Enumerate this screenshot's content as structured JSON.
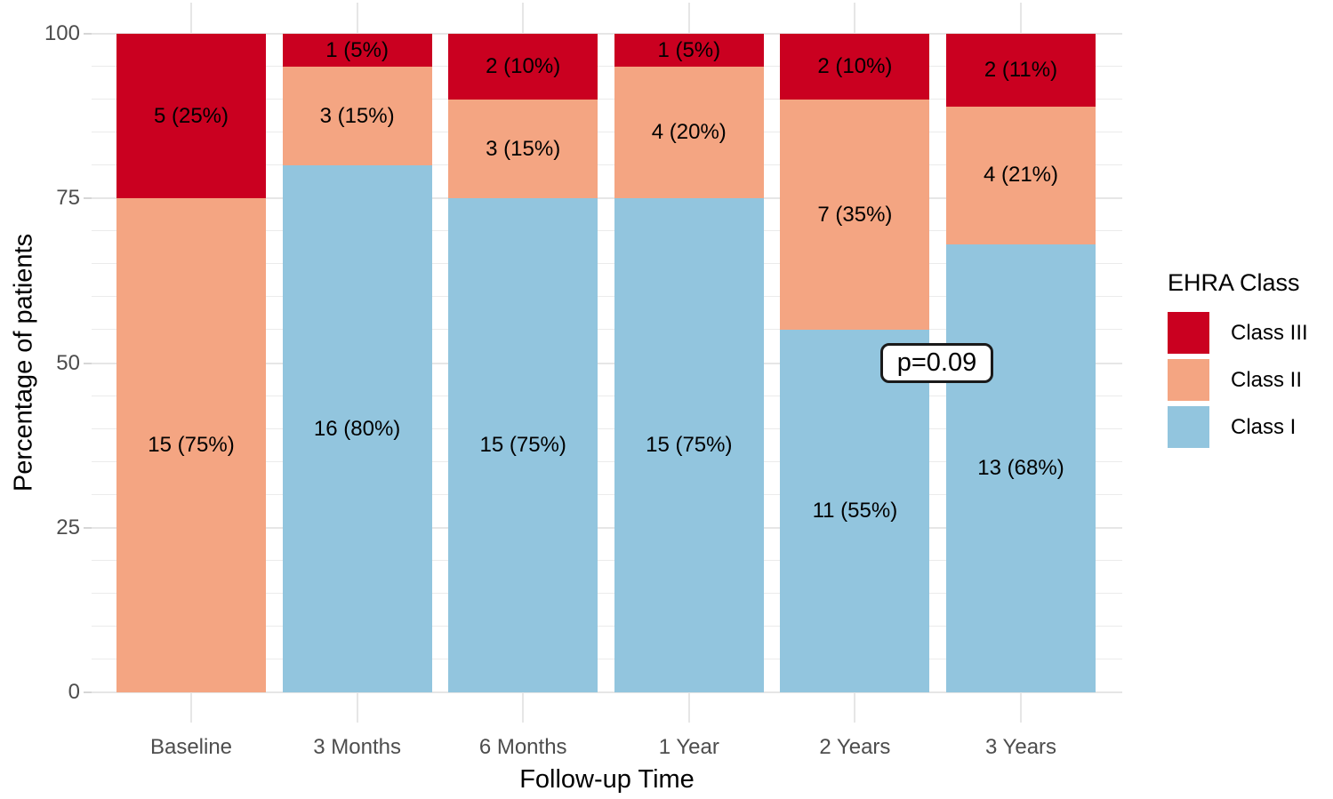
{
  "chart_data": {
    "type": "bar",
    "stacked": true,
    "orientation": "vertical",
    "xlabel": "Follow-up Time",
    "ylabel": "Percentage of patients",
    "categories": [
      "Baseline",
      "3 Months",
      "6 Months",
      "1 Year",
      "2 Years",
      "3 Years"
    ],
    "series": [
      {
        "name": "Class I",
        "color": "#92C5DE",
        "values": [
          0,
          80,
          75,
          75,
          55,
          68
        ],
        "counts": [
          0,
          16,
          15,
          15,
          11,
          13
        ],
        "labels": [
          "",
          "16 (80%)",
          "15 (75%)",
          "15 (75%)",
          "11 (55%)",
          "13 (68%)"
        ]
      },
      {
        "name": "Class II",
        "color": "#F4A582",
        "values": [
          75,
          15,
          15,
          20,
          35,
          21
        ],
        "counts": [
          15,
          3,
          3,
          4,
          7,
          4
        ],
        "labels": [
          "15 (75%)",
          "3 (15%)",
          "3 (15%)",
          "4 (20%)",
          "7 (35%)",
          "4 (21%)"
        ]
      },
      {
        "name": "Class III",
        "color": "#CA0020",
        "values": [
          25,
          5,
          10,
          5,
          10,
          11
        ],
        "counts": [
          5,
          1,
          2,
          1,
          2,
          2
        ],
        "labels": [
          "5 (25%)",
          "1 (5%)",
          "2 (10%)",
          "1 (5%)",
          "2 (10%)",
          "2 (11%)"
        ]
      }
    ],
    "yticks": [
      "0",
      "25",
      "50",
      "75",
      "100"
    ],
    "ytick_values": [
      0,
      25,
      50,
      75,
      100
    ],
    "ylim": [
      0,
      100
    ],
    "grid": {
      "horizontal_step": 5,
      "vertical": "category-centers",
      "color": "#e8e8e8"
    },
    "legend": {
      "title": "EHRA Class",
      "position": "right",
      "entries": [
        {
          "label": "Class III",
          "color": "#CA0020"
        },
        {
          "label": "Class II",
          "color": "#F4A582"
        },
        {
          "label": "Class I",
          "color": "#92C5DE"
        }
      ]
    },
    "annotation": {
      "text": "p=0.09"
    },
    "colors": {
      "class_iii": "#CA0020",
      "class_ii": "#F4A582",
      "class_i": "#92C5DE",
      "background": "#ffffff"
    }
  }
}
